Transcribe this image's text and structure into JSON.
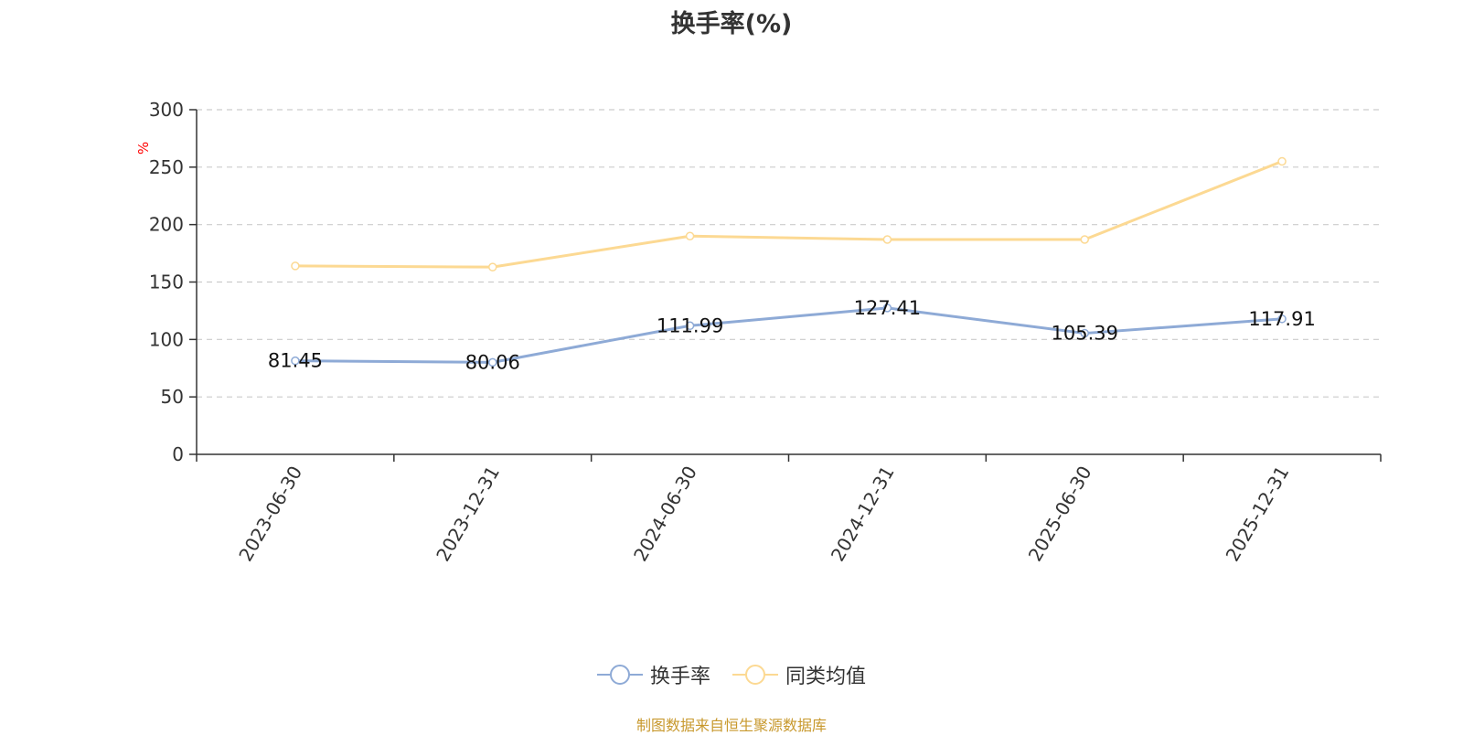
{
  "source": "制图数据来自恒生聚源数据库",
  "colors": {
    "series1": "#8eaad6",
    "series2": "#fcd993",
    "axis": "#333333",
    "grid": "#cccccc",
    "unit": "#ff0000",
    "source": "#c8992e"
  },
  "chart_data": {
    "type": "line",
    "title": "换手率(%)",
    "ylabel": "%",
    "xlabel": "",
    "categories": [
      "2023-06-30",
      "2023-12-31",
      "2024-06-30",
      "2024-12-31",
      "2025-06-30",
      "2025-12-31"
    ],
    "ylim": [
      0,
      300
    ],
    "yticks": [
      0,
      50,
      100,
      150,
      200,
      250,
      300
    ],
    "grid": true,
    "legend_position": "bottom",
    "series": [
      {
        "name": "换手率",
        "values": [
          81.45,
          80.06,
          111.99,
          127.41,
          105.39,
          117.91
        ],
        "data_labels": [
          "81.45",
          "80.06",
          "111.99",
          "127.41",
          "105.39",
          "117.91"
        ]
      },
      {
        "name": "同类均值",
        "values": [
          164,
          163,
          190,
          187,
          187,
          255
        ]
      }
    ]
  }
}
